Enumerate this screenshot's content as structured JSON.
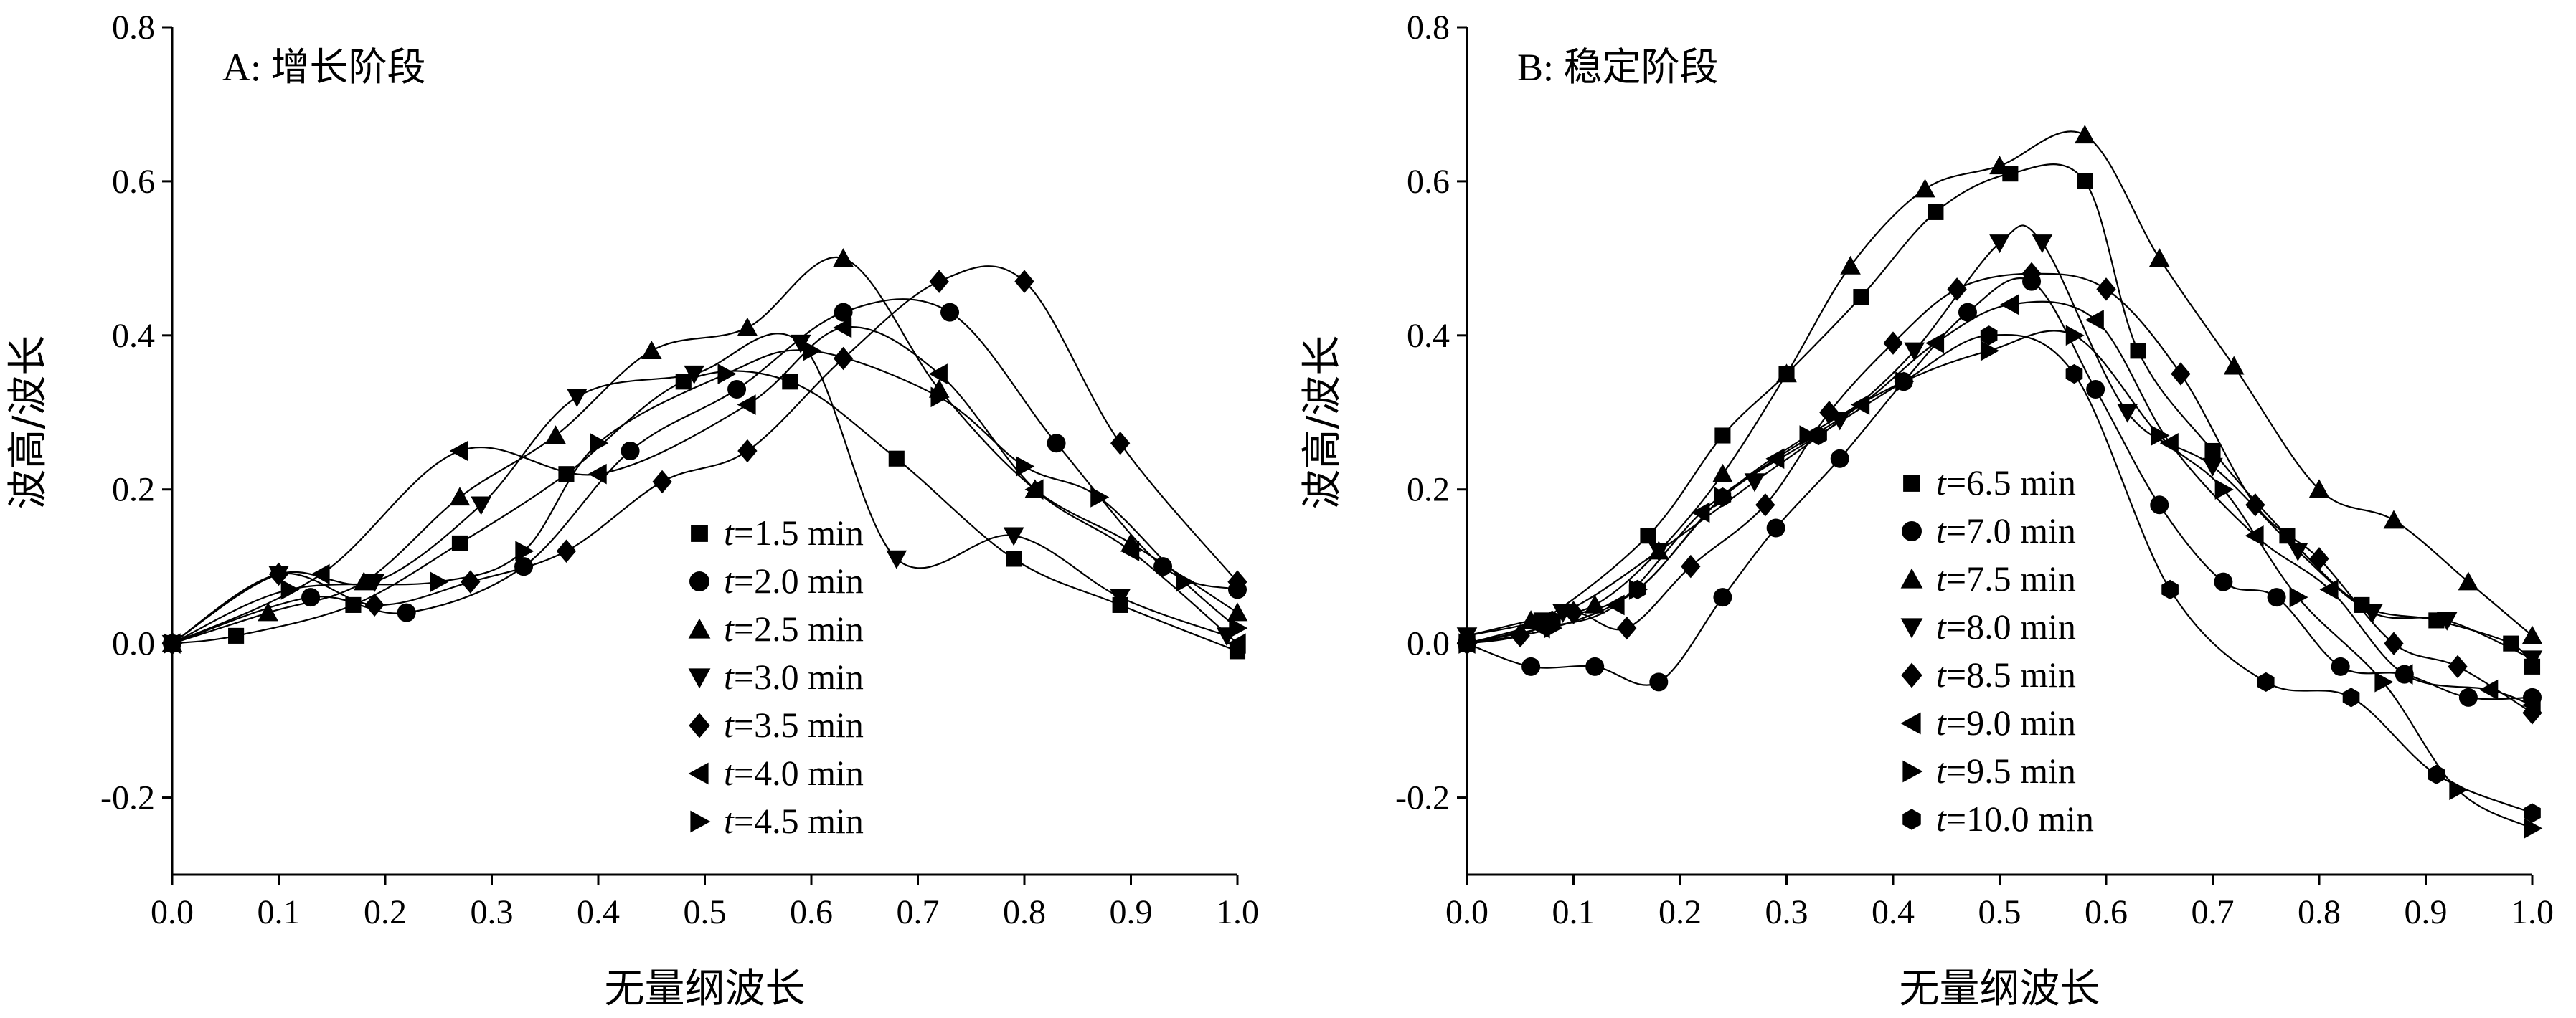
{
  "chart_data": [
    {
      "type": "line",
      "title": "A: 增长阶段",
      "xlabel": "无量纲波长",
      "ylabel": "波高/波长",
      "xlim": [
        0,
        1
      ],
      "ylim": [
        -0.3,
        0.8
      ],
      "xticks": [
        "0.0",
        "0.1",
        "0.2",
        "0.3",
        "0.4",
        "0.5",
        "0.6",
        "0.7",
        "0.8",
        "0.9",
        "1.0"
      ],
      "yticks": [
        "-0.2",
        "0.0",
        "0.2",
        "0.4",
        "0.6",
        "0.8"
      ],
      "legend_position": "bottom-center",
      "series": [
        {
          "t_label": "t",
          "name": "=1.5 min",
          "marker": "square",
          "x": [
            0,
            0.06,
            0.17,
            0.27,
            0.37,
            0.48,
            0.58,
            0.68,
            0.79,
            0.89,
            1.0
          ],
          "y": [
            0,
            0.01,
            0.05,
            0.13,
            0.22,
            0.34,
            0.34,
            0.24,
            0.11,
            0.05,
            -0.01
          ]
        },
        {
          "t_label": "t",
          "name": "=2.0 min",
          "marker": "circle",
          "x": [
            0,
            0.13,
            0.22,
            0.33,
            0.43,
            0.53,
            0.63,
            0.73,
            0.83,
            0.93,
            1.0
          ],
          "y": [
            0,
            0.06,
            0.04,
            0.1,
            0.25,
            0.33,
            0.43,
            0.43,
            0.26,
            0.1,
            0.07
          ]
        },
        {
          "t_label": "t",
          "name": "=2.5 min",
          "marker": "triangle-up",
          "x": [
            0,
            0.09,
            0.18,
            0.27,
            0.36,
            0.45,
            0.54,
            0.63,
            0.72,
            0.81,
            0.9,
            1.0
          ],
          "y": [
            0,
            0.04,
            0.08,
            0.19,
            0.27,
            0.38,
            0.41,
            0.5,
            0.33,
            0.2,
            0.13,
            0.04
          ]
        },
        {
          "t_label": "t",
          "name": "=3.0 min",
          "marker": "triangle-down",
          "x": [
            0,
            0.1,
            0.19,
            0.29,
            0.38,
            0.49,
            0.59,
            0.68,
            0.79,
            0.89,
            0.99
          ],
          "y": [
            0,
            0.09,
            0.08,
            0.18,
            0.32,
            0.35,
            0.39,
            0.11,
            0.14,
            0.06,
            0.01
          ]
        },
        {
          "t_label": "t",
          "name": "=3.5 min",
          "marker": "diamond",
          "x": [
            0,
            0.1,
            0.19,
            0.28,
            0.37,
            0.46,
            0.54,
            0.63,
            0.72,
            0.8,
            0.89,
            1.0
          ],
          "y": [
            0,
            0.09,
            0.05,
            0.08,
            0.12,
            0.21,
            0.25,
            0.37,
            0.47,
            0.47,
            0.26,
            0.08
          ]
        },
        {
          "t_label": "t",
          "name": "=4.0 min",
          "marker": "triangle-left",
          "x": [
            0,
            0.14,
            0.27,
            0.4,
            0.54,
            0.63,
            0.72,
            0.81,
            0.9,
            1.0
          ],
          "y": [
            0,
            0.09,
            0.25,
            0.22,
            0.31,
            0.41,
            0.35,
            0.2,
            0.12,
            0.0
          ]
        },
        {
          "t_label": "t",
          "name": "=4.5 min",
          "marker": "triangle-right",
          "x": [
            0,
            0.11,
            0.25,
            0.33,
            0.4,
            0.52,
            0.6,
            0.72,
            0.8,
            0.87,
            0.95,
            1.0
          ],
          "y": [
            0,
            0.07,
            0.08,
            0.12,
            0.26,
            0.35,
            0.38,
            0.32,
            0.23,
            0.19,
            0.08,
            0.02
          ]
        }
      ]
    },
    {
      "type": "line",
      "title": "B: 稳定阶段",
      "xlabel": "无量纲波长",
      "ylabel": "波高/波长",
      "xlim": [
        0,
        1
      ],
      "ylim": [
        -0.3,
        0.8
      ],
      "xticks": [
        "0.0",
        "0.1",
        "0.2",
        "0.3",
        "0.4",
        "0.5",
        "0.6",
        "0.7",
        "0.8",
        "0.9",
        "1.0"
      ],
      "yticks": [
        "-0.2",
        "0.0",
        "0.2",
        "0.4",
        "0.6",
        "0.8"
      ],
      "legend_position": "bottom-center",
      "series": [
        {
          "t_label": "t",
          "name": "=6.5 min",
          "marker": "square",
          "x": [
            0,
            0.07,
            0.17,
            0.24,
            0.3,
            0.37,
            0.44,
            0.51,
            0.58,
            0.63,
            0.7,
            0.77,
            0.84,
            0.91,
            0.98,
            1.0
          ],
          "y": [
            0,
            0.03,
            0.14,
            0.27,
            0.35,
            0.45,
            0.56,
            0.61,
            0.6,
            0.38,
            0.25,
            0.14,
            0.05,
            0.03,
            0.0,
            -0.03
          ]
        },
        {
          "t_label": "t",
          "name": "=7.0 min",
          "marker": "circle",
          "x": [
            0,
            0.06,
            0.12,
            0.18,
            0.24,
            0.29,
            0.35,
            0.41,
            0.47,
            0.53,
            0.59,
            0.65,
            0.71,
            0.76,
            0.82,
            0.88,
            0.94,
            1.0
          ],
          "y": [
            0,
            -0.03,
            -0.03,
            -0.05,
            0.06,
            0.15,
            0.24,
            0.34,
            0.43,
            0.47,
            0.33,
            0.18,
            0.08,
            0.06,
            -0.03,
            -0.04,
            -0.07,
            -0.07
          ]
        },
        {
          "t_label": "t",
          "name": "=7.5 min",
          "marker": "triangle-up",
          "x": [
            0,
            0.06,
            0.12,
            0.18,
            0.24,
            0.3,
            0.36,
            0.43,
            0.5,
            0.58,
            0.65,
            0.72,
            0.8,
            0.87,
            0.94,
            1.0
          ],
          "y": [
            0.01,
            0.03,
            0.05,
            0.12,
            0.22,
            0.35,
            0.49,
            0.59,
            0.62,
            0.66,
            0.5,
            0.36,
            0.2,
            0.16,
            0.08,
            0.01
          ]
        },
        {
          "t_label": "t",
          "name": "=8.0 min",
          "marker": "triangle-down",
          "x": [
            0,
            0.09,
            0.18,
            0.27,
            0.35,
            0.42,
            0.5,
            0.54,
            0.62,
            0.7,
            0.78,
            0.85,
            0.92,
            1.0
          ],
          "y": [
            0.01,
            0.04,
            0.12,
            0.21,
            0.29,
            0.38,
            0.52,
            0.52,
            0.3,
            0.23,
            0.12,
            0.04,
            0.03,
            -0.02
          ]
        },
        {
          "t_label": "t",
          "name": "=8.5 min",
          "marker": "diamond",
          "x": [
            0,
            0.05,
            0.1,
            0.15,
            0.21,
            0.28,
            0.34,
            0.4,
            0.46,
            0.53,
            0.6,
            0.67,
            0.74,
            0.8,
            0.87,
            0.93,
            1.0
          ],
          "y": [
            0,
            0.01,
            0.04,
            0.02,
            0.1,
            0.18,
            0.3,
            0.39,
            0.46,
            0.48,
            0.46,
            0.35,
            0.18,
            0.11,
            0.0,
            -0.03,
            -0.09
          ]
        },
        {
          "t_label": "t",
          "name": "=9.0 min",
          "marker": "triangle-left",
          "x": [
            0,
            0.07,
            0.14,
            0.22,
            0.29,
            0.37,
            0.44,
            0.51,
            0.59,
            0.66,
            0.74,
            0.81,
            0.88,
            0.96,
            1.0
          ],
          "y": [
            0,
            0.02,
            0.05,
            0.17,
            0.24,
            0.31,
            0.39,
            0.44,
            0.42,
            0.26,
            0.14,
            0.07,
            -0.04,
            -0.06,
            -0.08
          ]
        },
        {
          "t_label": "t",
          "name": "=9.5 min",
          "marker": "triangle-right",
          "x": [
            0,
            0.08,
            0.16,
            0.24,
            0.32,
            0.41,
            0.49,
            0.57,
            0.65,
            0.71,
            0.78,
            0.86,
            0.93,
            1.0
          ],
          "y": [
            0,
            0.02,
            0.07,
            0.19,
            0.27,
            0.34,
            0.38,
            0.4,
            0.27,
            0.2,
            0.06,
            -0.05,
            -0.19,
            -0.24
          ]
        },
        {
          "t_label": "t",
          "name": "=10.0 min",
          "marker": "hexagon",
          "x": [
            0,
            0.08,
            0.16,
            0.24,
            0.33,
            0.41,
            0.49,
            0.57,
            0.66,
            0.75,
            0.83,
            0.91,
            1.0
          ],
          "y": [
            0,
            0.03,
            0.07,
            0.19,
            0.27,
            0.34,
            0.4,
            0.35,
            0.07,
            -0.05,
            -0.07,
            -0.17,
            -0.22
          ]
        }
      ]
    }
  ]
}
